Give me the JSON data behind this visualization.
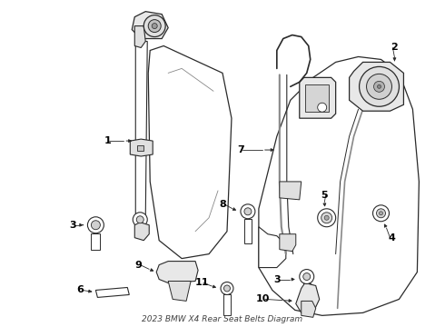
{
  "title": "2023 BMW X4 Rear Seat Belts Diagram",
  "bg_color": "#ffffff",
  "line_color": "#2a2a2a",
  "fig_width": 4.9,
  "fig_height": 3.6,
  "dpi": 100
}
